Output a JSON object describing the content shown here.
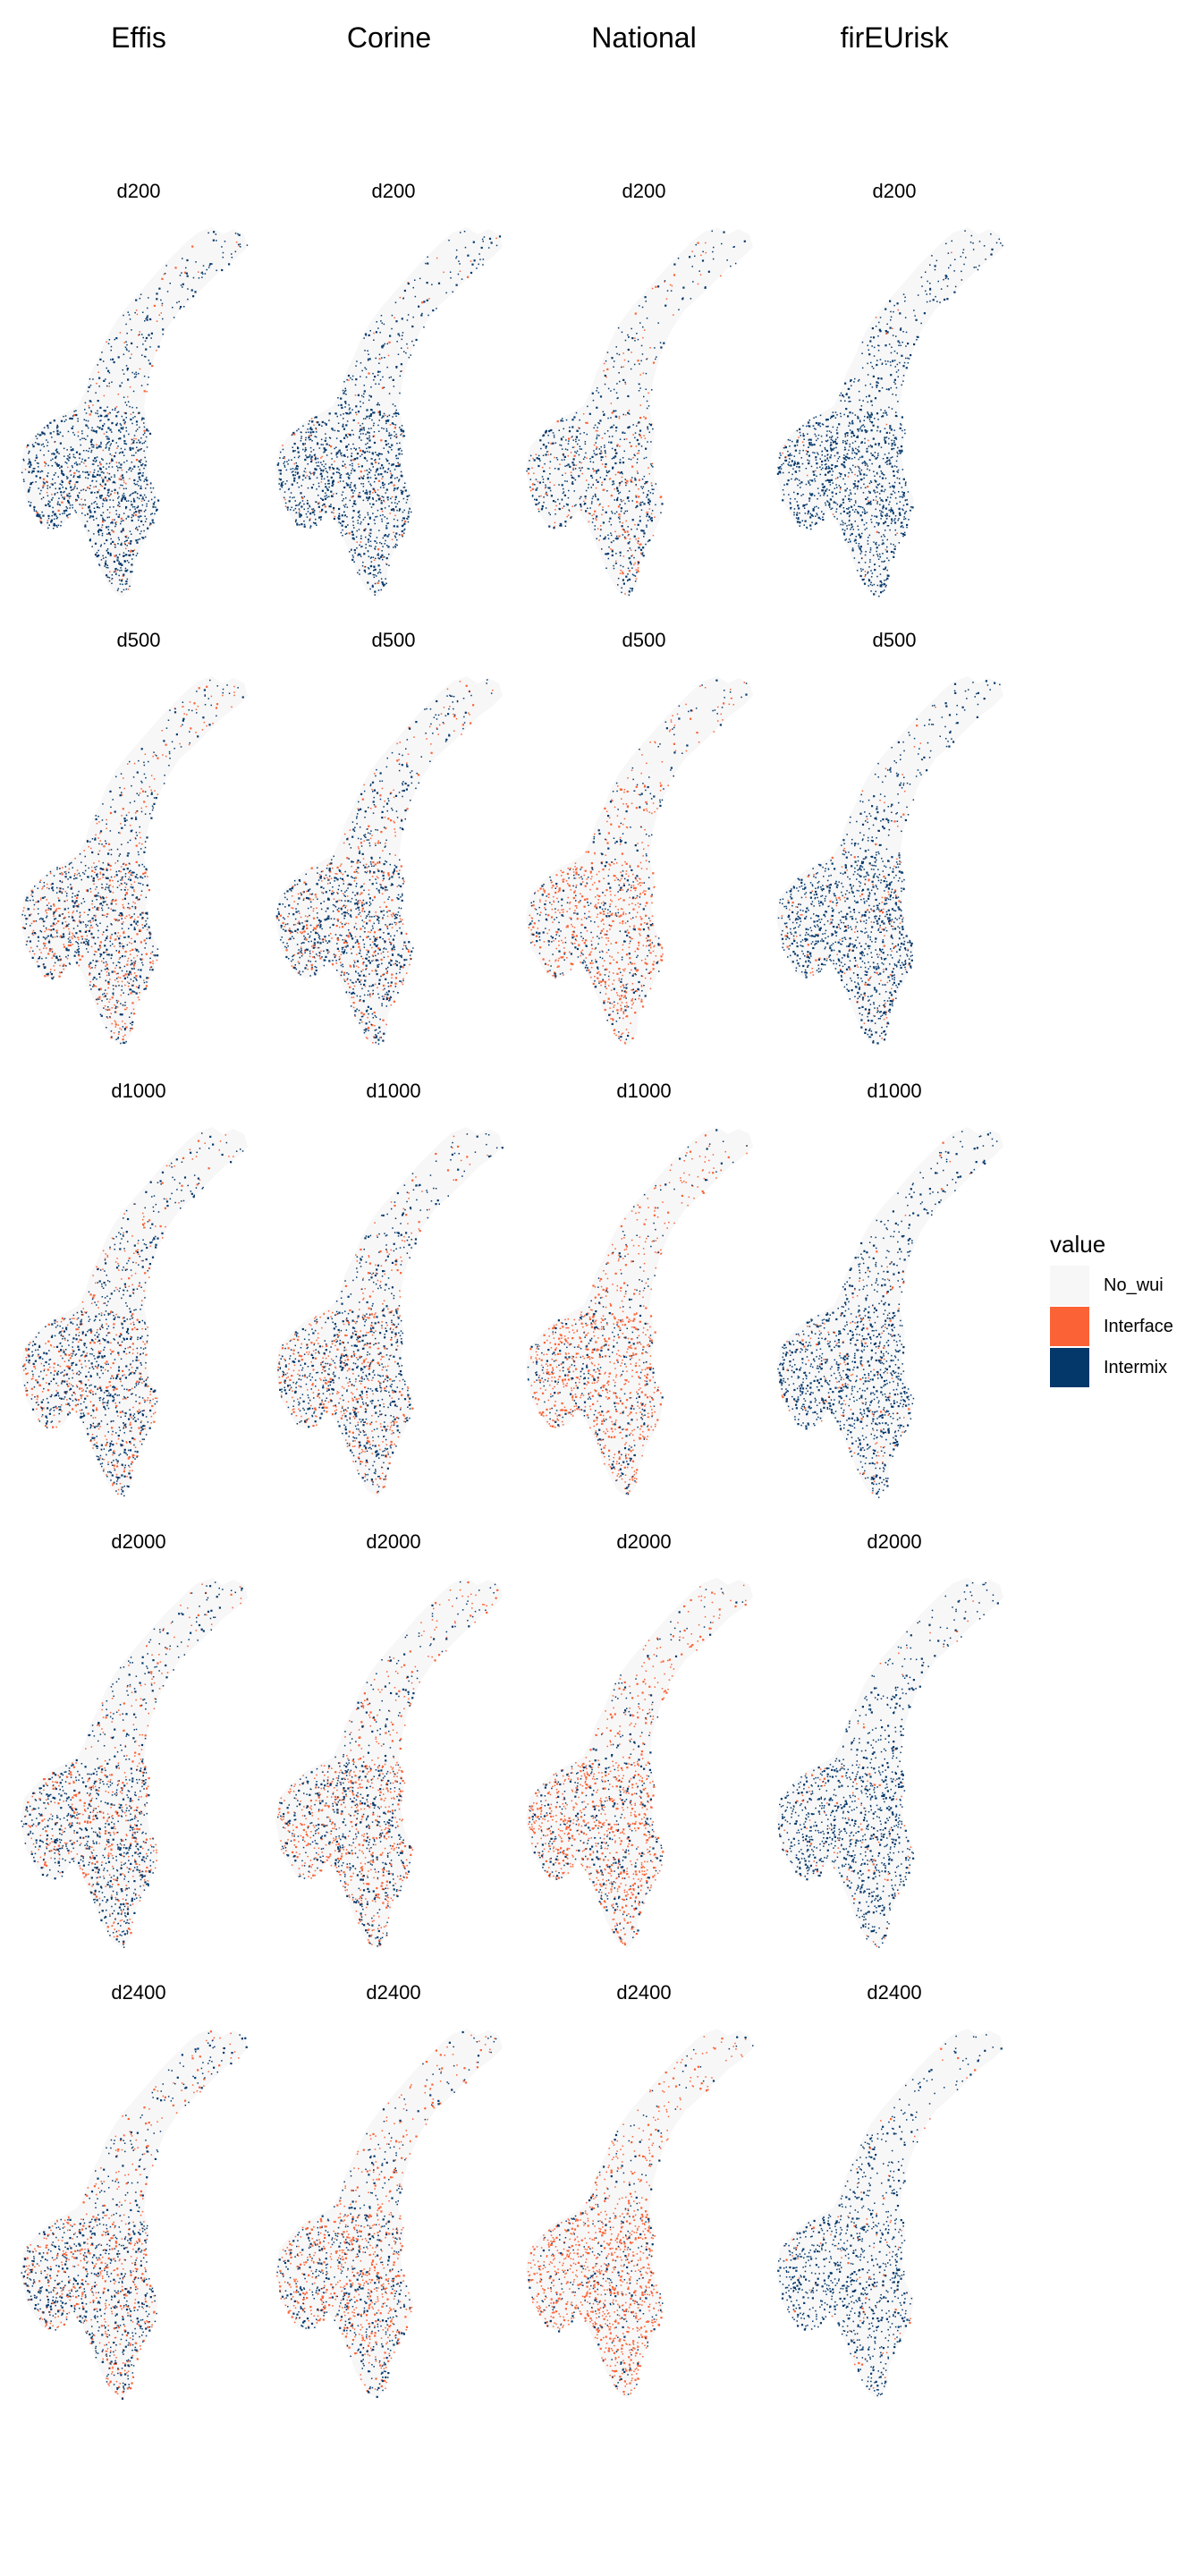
{
  "columns": [
    "Effis",
    "Corine",
    "National",
    "firEUrisk"
  ],
  "rows": [
    "d200",
    "d500",
    "d1000",
    "d2000",
    "d2400"
  ],
  "legend": {
    "title": "value",
    "items": [
      {
        "label": "No_wui",
        "color": "#f7f7f7"
      },
      {
        "label": "Interface",
        "color": "#fb6235"
      },
      {
        "label": "Intermix",
        "color": "#04386b"
      }
    ]
  },
  "pattern": {
    "interface_share": [
      [
        0.1,
        0.1,
        0.3,
        0.02
      ],
      [
        0.4,
        0.35,
        0.65,
        0.12
      ],
      [
        0.35,
        0.4,
        0.7,
        0.1
      ],
      [
        0.4,
        0.5,
        0.7,
        0.1
      ],
      [
        0.45,
        0.55,
        0.75,
        0.08
      ]
    ],
    "density": [
      [
        1.0,
        1.0,
        0.7,
        1.0
      ],
      [
        1.0,
        1.0,
        0.8,
        1.0
      ],
      [
        1.0,
        1.0,
        0.9,
        1.0
      ],
      [
        1.0,
        1.0,
        1.0,
        0.9
      ],
      [
        1.0,
        1.0,
        1.0,
        0.8
      ]
    ]
  }
}
